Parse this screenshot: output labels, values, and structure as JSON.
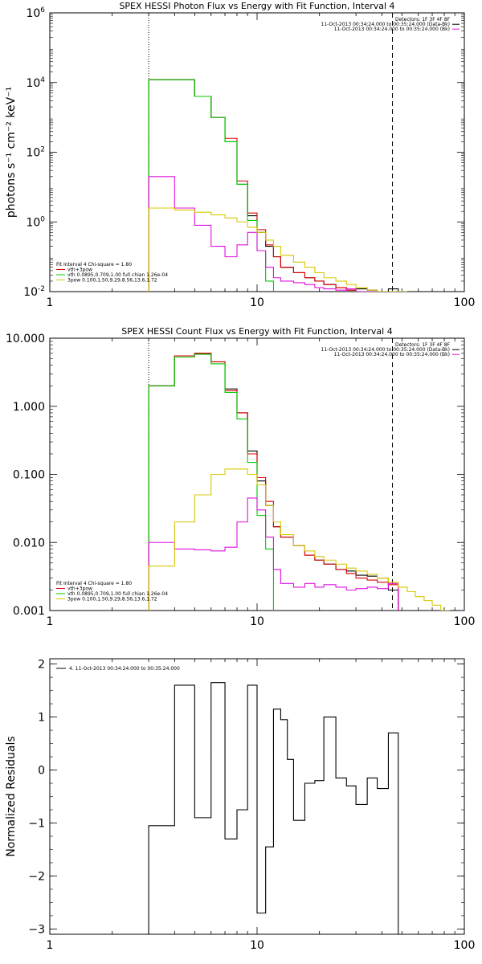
{
  "chart_data": [
    {
      "type": "line",
      "title": "SPEX HESSI Photon Flux vs Energy with Fit Function, Interval 4",
      "ylabel": "photons s⁻¹ cm⁻² keV⁻¹",
      "xlabel": "",
      "xscale": "log",
      "yscale": "log",
      "xlim": [
        1,
        100
      ],
      "ylim": [
        0.01,
        1000000
      ],
      "xticks": [
        "1",
        "10",
        "100"
      ],
      "yticks": [
        {
          "base": "10",
          "exp": "-2",
          "value": 0.01
        },
        {
          "base": "10",
          "exp": "0",
          "value": 1
        },
        {
          "base": "10",
          "exp": "2",
          "value": 100
        },
        {
          "base": "10",
          "exp": "4",
          "value": 10000
        },
        {
          "base": "10",
          "exp": "6",
          "value": 1000000
        }
      ],
      "vlines": [
        {
          "x": 3,
          "style": "dotted"
        },
        {
          "x": 45,
          "style": "dashed"
        }
      ],
      "legend_top_right": [
        "Detectors: 1F 3F 4F 8F",
        "11-Oct-2013 00:34:24.000 to 00:35:24.000 (Data-Bk)",
        "11-Oct-2013 00:34:24.000 to 00:35:24.000 (Bk)"
      ],
      "legend_bottom_left": [
        "Fit Interval  4    Chi-square = 1.80",
        "vth+3pow",
        "vth 0.0895,0.709,1.00  full chian 1.26e-04",
        "3pow 0.100,1.50,9.29,8.56,13.6,1.72"
      ],
      "series": [
        {
          "color": "#000000",
          "edges": [
            3,
            4,
            5,
            6,
            7,
            8,
            9,
            10,
            11,
            12,
            13,
            15,
            17,
            19,
            21,
            24,
            27,
            30,
            34,
            38,
            43,
            48,
            50
          ],
          "values": [
            12000.0,
            12000.0,
            4000,
            1000,
            200,
            12,
            1.5,
            0.5,
            0.2,
            0.1,
            0.05,
            0.035,
            0.025,
            0.02,
            0.016,
            0.013,
            0.011,
            0.012,
            0.011,
            0.01,
            0.012,
            0.0075
          ]
        },
        {
          "color": "#dd0000",
          "edges": [
            3,
            4,
            5,
            6,
            7,
            8,
            9,
            10,
            11,
            12,
            13,
            15,
            17,
            19,
            21,
            24,
            27,
            30,
            34,
            38,
            43,
            48,
            50
          ],
          "values": [
            12000.0,
            12000.0,
            4000,
            1000,
            250,
            15,
            1.8,
            0.6,
            0.22,
            0.1,
            0.05,
            0.035,
            0.025,
            0.02,
            0.016,
            0.013,
            0.011,
            0.01,
            0.01,
            0.009,
            0.008,
            0.0075
          ]
        },
        {
          "color": "#00cc00",
          "edges": [
            3,
            4,
            5,
            6,
            7,
            8,
            9,
            10,
            11,
            12
          ],
          "values": [
            12000.0,
            12000.0,
            4000,
            1000,
            200,
            12,
            1.1,
            0.15,
            0.02
          ]
        },
        {
          "color": "#e010e0",
          "edges": [
            3,
            4,
            5,
            6,
            7,
            8,
            9,
            10,
            11,
            12,
            13,
            15,
            17,
            19,
            21,
            24,
            27,
            30,
            34,
            38,
            43,
            48
          ],
          "values": [
            20,
            2.5,
            0.8,
            0.2,
            0.1,
            0.22,
            0.5,
            0.15,
            0.05,
            0.025,
            0.02,
            0.018,
            0.016,
            0.013,
            0.012,
            0.011,
            0.012,
            0.01,
            0.009,
            0.008,
            0.0085
          ]
        },
        {
          "color": "#d8c800",
          "edges": [
            3,
            4,
            5,
            6,
            7,
            8,
            9,
            10,
            11,
            12,
            13,
            15,
            17,
            19,
            21,
            24,
            27,
            30,
            34,
            38,
            43,
            48,
            53
          ],
          "values": [
            2.5,
            2.2,
            1.9,
            1.6,
            1.3,
            1.0,
            0.7,
            0.5,
            0.3,
            0.2,
            0.11,
            0.07,
            0.05,
            0.035,
            0.025,
            0.02,
            0.016,
            0.013,
            0.011,
            0.01,
            0.009,
            0.008
          ]
        }
      ]
    },
    {
      "type": "line",
      "title": "SPEX HESSI Count Flux vs Energy with Fit Function, Interval 4",
      "xlabel": "",
      "ylabel": "",
      "xscale": "log",
      "yscale": "log",
      "xlim": [
        1,
        100
      ],
      "ylim": [
        0.001,
        10
      ],
      "xticks": [
        "1",
        "10",
        "100"
      ],
      "yticks": [
        {
          "label": "0.001",
          "value": 0.001
        },
        {
          "label": "0.010",
          "value": 0.01
        },
        {
          "label": "0.100",
          "value": 0.1
        },
        {
          "label": "1.000",
          "value": 1
        },
        {
          "label": "10.000",
          "value": 10
        }
      ],
      "vlines": [
        {
          "x": 3,
          "style": "dotted"
        },
        {
          "x": 45,
          "style": "dashed"
        }
      ],
      "legend_top_right": [
        "Detectors: 1F 3F 4F 8F",
        "11-Oct-2013 00:34:24.000 to 00:35:24.000 (Data-Bk)",
        "11-Oct-2013 00:34:24.000 to 00:35:24.000 (Bk)"
      ],
      "legend_bottom_left": [
        "Fit Interval  4    Chi-square = 1.80",
        "vth+3pow",
        "vth 0.0895,0.709,1.00  full chian 1.26e-04",
        "3pow 0.100,1.50,9.29,8.56,13.6,1.72"
      ],
      "series": [
        {
          "color": "#000000",
          "edges": [
            3,
            4,
            5,
            6,
            7,
            8,
            9,
            10,
            11,
            12,
            13,
            15,
            17,
            19,
            21,
            24,
            27,
            30,
            34,
            38,
            43,
            48
          ],
          "values": [
            2.0,
            5.5,
            6.0,
            4.5,
            1.8,
            0.8,
            0.22,
            0.08,
            0.035,
            0.017,
            0.012,
            0.009,
            0.0065,
            0.0055,
            0.0048,
            0.004,
            0.0038,
            0.0033,
            0.0032,
            0.003,
            0.002
          ]
        },
        {
          "color": "#dd0000",
          "edges": [
            3,
            4,
            5,
            6,
            7,
            8,
            9,
            10,
            11,
            12,
            13,
            15,
            17,
            19,
            21,
            24,
            27,
            30,
            34,
            38,
            43,
            48
          ],
          "values": [
            2.0,
            5.5,
            6.0,
            4.5,
            1.7,
            0.8,
            0.2,
            0.09,
            0.04,
            0.017,
            0.012,
            0.009,
            0.0065,
            0.0055,
            0.0048,
            0.004,
            0.0035,
            0.003,
            0.0028,
            0.0026,
            0.0024
          ]
        },
        {
          "color": "#00cc00",
          "edges": [
            3,
            4,
            5,
            6,
            7,
            8,
            9,
            10,
            11,
            12
          ],
          "values": [
            2.0,
            5.3,
            5.8,
            4.2,
            1.6,
            0.65,
            0.15,
            0.025,
            0.008
          ]
        },
        {
          "color": "#e010e0",
          "edges": [
            3,
            4,
            5,
            6,
            7,
            8,
            9,
            10,
            11,
            12,
            13,
            15,
            17,
            19,
            21,
            24,
            27,
            30,
            34,
            38,
            43,
            48
          ],
          "values": [
            0.01,
            0.008,
            0.0078,
            0.0075,
            0.0085,
            0.02,
            0.045,
            0.03,
            0.012,
            0.004,
            0.0025,
            0.0022,
            0.0025,
            0.0022,
            0.0024,
            0.0022,
            0.002,
            0.0021,
            0.0022,
            0.0021,
            0.0025
          ]
        },
        {
          "color": "#d8c800",
          "edges": [
            3,
            4,
            5,
            6,
            7,
            8,
            9,
            10,
            11,
            12,
            13,
            15,
            17,
            19,
            21,
            24,
            27,
            30,
            34,
            38,
            43,
            48,
            53,
            58,
            64,
            70,
            77,
            85
          ],
          "values": [
            0.0045,
            0.02,
            0.05,
            0.1,
            0.12,
            0.12,
            0.1,
            0.07,
            0.035,
            0.02,
            0.013,
            0.009,
            0.0075,
            0.0062,
            0.0055,
            0.0048,
            0.0042,
            0.0038,
            0.0034,
            0.003,
            0.0026,
            0.0022,
            0.0019,
            0.0016,
            0.0014,
            0.0012,
            0.001
          ]
        }
      ]
    },
    {
      "type": "line",
      "title": "",
      "ylabel": "Normalized Residuals",
      "xlabel": "",
      "xscale": "log",
      "yscale": "linear",
      "xlim": [
        1,
        100
      ],
      "ylim": [
        -3.1,
        2.1
      ],
      "xticks": [
        "1",
        "10",
        "100"
      ],
      "yticks": [
        {
          "label": "2",
          "value": 2
        },
        {
          "label": "1",
          "value": 1
        },
        {
          "label": "0",
          "value": 0
        },
        {
          "label": "−1",
          "value": -1
        },
        {
          "label": "−2",
          "value": -2
        },
        {
          "label": "−3",
          "value": -3
        }
      ],
      "legend_top_left": [
        "4. 11-Oct-2013 00:34:24.000 to 00:35:24.000"
      ],
      "series": [
        {
          "color": "#000000",
          "edges": [
            3,
            4,
            5,
            6,
            7,
            8,
            9,
            10,
            11,
            12,
            13,
            14,
            15,
            17,
            19,
            21,
            24,
            27,
            30,
            34,
            38,
            43,
            48
          ],
          "values": [
            -1.05,
            1.6,
            -0.9,
            1.65,
            -1.3,
            -0.75,
            1.6,
            -2.7,
            -1.45,
            1.15,
            0.95,
            0.2,
            -0.95,
            -0.25,
            -0.2,
            1.0,
            -0.15,
            -0.3,
            -0.65,
            -0.15,
            -0.35,
            0.7
          ]
        }
      ]
    }
  ]
}
